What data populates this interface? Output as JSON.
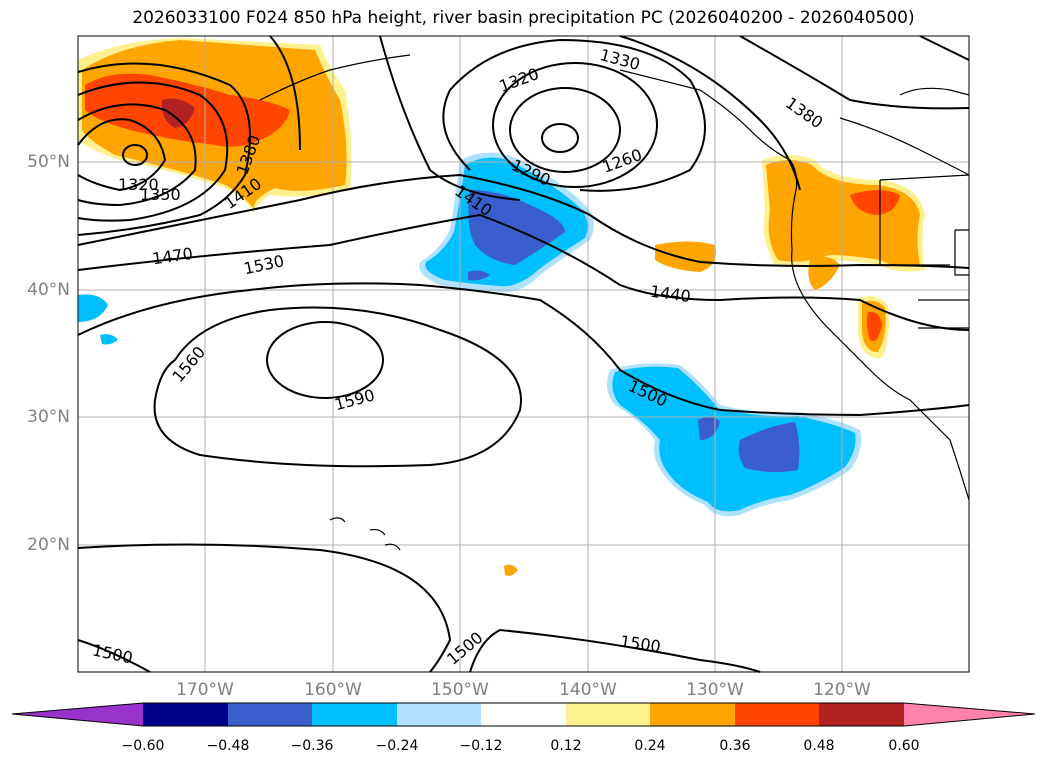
{
  "title": "2026033100 F024 850 hPa height, river basin precipitation PC (2026040200 - 2026040500)",
  "map": {
    "lat_labels": [
      "50°N",
      "40°N",
      "30°N",
      "20°N"
    ],
    "lon_labels": [
      "170°W",
      "160°W",
      "150°W",
      "140°W",
      "130°W",
      "120°W"
    ],
    "contour_labels": [
      "1320",
      "1350",
      "1380",
      "1410",
      "1470",
      "1530",
      "1560",
      "1590",
      "1500",
      "1500",
      "1500",
      "1500",
      "1440",
      "1410",
      "1290",
      "1320",
      "1330",
      "1260",
      "1380"
    ]
  },
  "colorbar": {
    "ticks": [
      "−0.60",
      "−0.48",
      "−0.36",
      "−0.24",
      "−0.12",
      "0.12",
      "0.24",
      "0.36",
      "0.48",
      "0.60"
    ],
    "colors": [
      "#9932cc",
      "#00008b",
      "#3a5fcd",
      "#00bfff",
      "#b0e2ff",
      "#ffffff",
      "#fff08f",
      "#ffa500",
      "#ff4500",
      "#b22222",
      "#ff82ab"
    ]
  }
}
